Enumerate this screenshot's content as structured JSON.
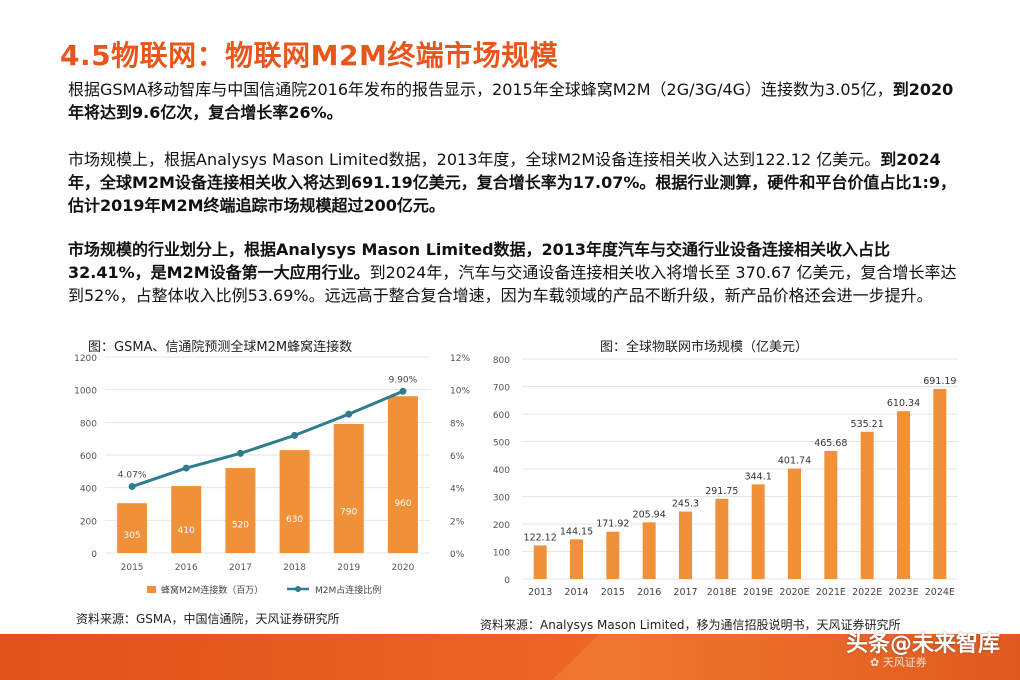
{
  "title": "4.5物联网：物联网M2M终端市场规模",
  "paragraphs": {
    "p1_a": "根据GSMA移动智库与中国信通院2016年发布的报告显示，2015年全球蜂窝M2M（2G/3G/4G）连接数为3.05亿，",
    "p1_b": "到2020年将达到9.6亿次，复合增长率26%。",
    "p2_a": "市场规模上，根据Analysys Mason Limited数据，2013年度，全球M2M设备连接相关收入达到122.12 亿美元。",
    "p2_b": "到2024年，全球M2M设备连接相关收入将达到691.19亿美元，复合增长率为17.07%。根据行业测算，硬件和平台价值占比1:9，估计2019年M2M终端追踪市场规模超过200亿元。",
    "p3_a": "市场规模的行业划分上，根据Analysys Mason Limited数据，2013年度汽车与交通行业设备连接相关收入占比32.41%，是M2M设备第一大应用行业。",
    "p3_b": "到2024年，汽车与交通设备连接相关收入将增长至 370.67 亿美元，复合增长率达到52%，占整体收入比例53.69%。远远高于整合复合增速，因为车载领域的产品不断升级，新产品价格还会进一步提升。"
  },
  "left_chart": {
    "caption": "图：GSMA、信通院预测全球M2M蜂窝连接数",
    "source": "资料来源：GSMA，中国信通院，天风证券研究所"
  },
  "right_chart": {
    "caption": "图：全球物联网市场规模（亿美元）",
    "source": "资料来源：Analysys Mason Limited，移为通信招股说明书，天风证券研究所"
  },
  "watermark": "头条@未来智库",
  "logo_text": "天风证券",
  "colors": {
    "accent": "#e8561e",
    "bar": "#f0913a",
    "line": "#2e7d8c"
  },
  "chart_data": [
    {
      "type": "bar",
      "categories": [
        "2015",
        "2016",
        "2017",
        "2018",
        "2019",
        "2020"
      ],
      "series": [
        {
          "name": "蜂窝M2M连接数（百万）",
          "values": [
            305,
            410,
            520,
            630,
            790,
            960
          ],
          "axis": "left"
        },
        {
          "name": "M2M占连接比例",
          "type": "line",
          "values": [
            4.07,
            5.2,
            6.1,
            7.2,
            8.5,
            9.9
          ],
          "axis": "right",
          "labels": [
            "4.07%",
            "",
            "",
            "",
            "",
            "9.90%"
          ]
        }
      ],
      "ylim": [
        0,
        1200
      ],
      "yticks": [
        "0",
        "200",
        "400",
        "600",
        "800",
        "1000",
        "1200"
      ],
      "y2lim": [
        0,
        12
      ],
      "y2ticks": [
        "0%",
        "2%",
        "4%",
        "6%",
        "8%",
        "10%",
        "12%"
      ],
      "legend": "bottom"
    },
    {
      "type": "bar",
      "categories": [
        "2013",
        "2014",
        "2015",
        "2016",
        "2017",
        "2018E",
        "2019E",
        "2020E",
        "2021E",
        "2022E",
        "2023E",
        "2024E"
      ],
      "values": [
        122.12,
        144.15,
        171.92,
        205.94,
        245.3,
        291.75,
        344.1,
        401.74,
        465.68,
        535.21,
        610.34,
        691.19
      ],
      "labels": [
        "122.12",
        "144.15",
        "171.92",
        "205.94",
        "245.3",
        "291.75",
        "344.1",
        "401.74",
        "465.68",
        "535.21",
        "610.34",
        "691.19"
      ],
      "ylim": [
        0,
        800
      ],
      "yticks": [
        "0",
        "100",
        "200",
        "300",
        "400",
        "500",
        "600",
        "700",
        "800"
      ]
    }
  ]
}
